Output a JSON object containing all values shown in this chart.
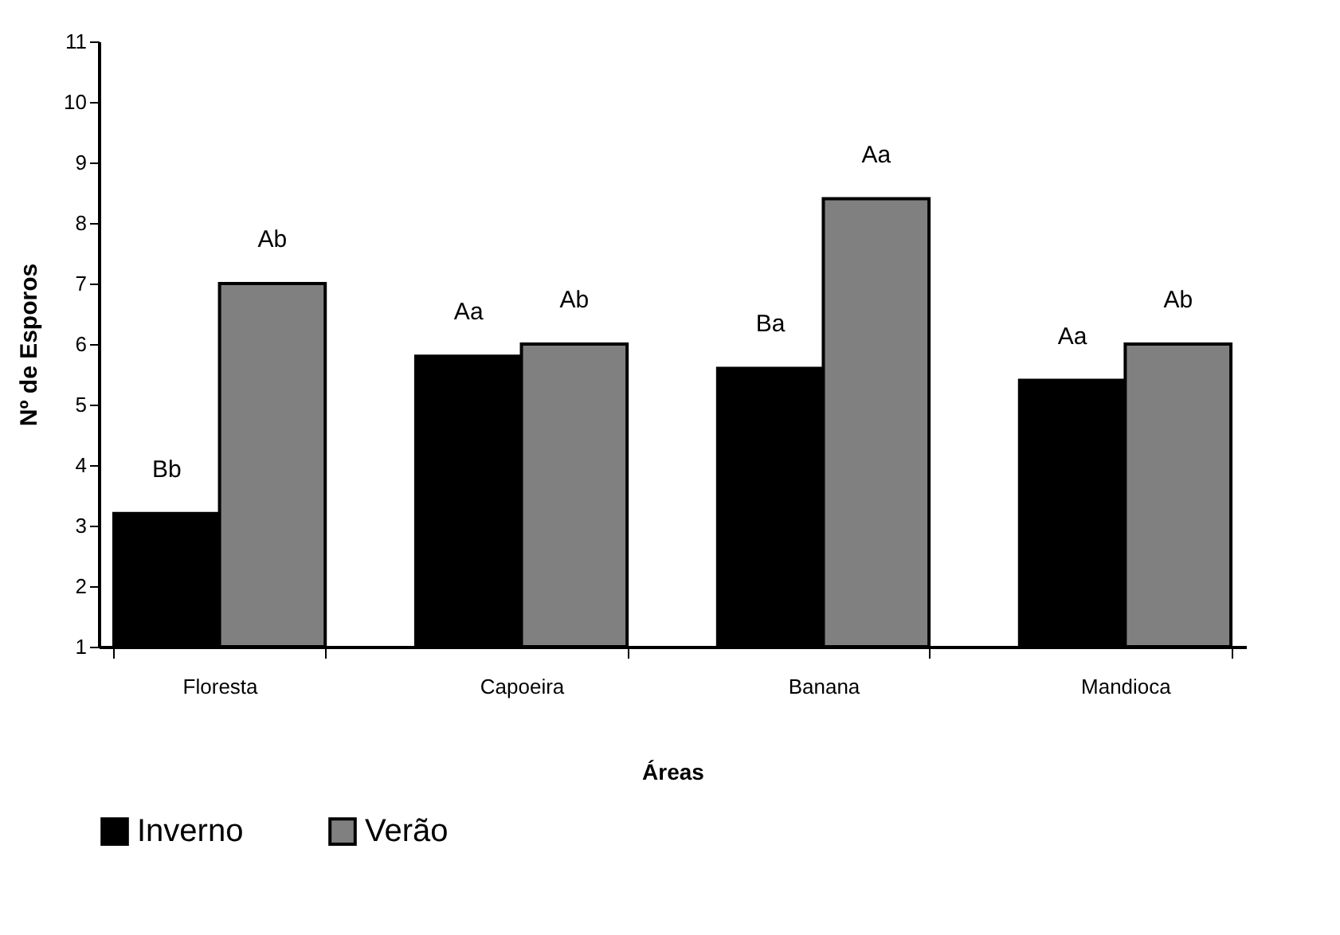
{
  "chart_data": {
    "type": "bar",
    "xlabel": "Áreas",
    "ylabel": "Nº de Esporos",
    "categories": [
      "Floresta",
      "Capoeira",
      "Banana",
      "Mandioca"
    ],
    "series": [
      {
        "name": "Inverno",
        "color": "#000000",
        "values": [
          3.2,
          5.8,
          5.6,
          5.4
        ],
        "value_labels": [
          "Bb",
          "Aa",
          "Ba",
          "Aa"
        ]
      },
      {
        "name": "Verão",
        "color": "#808080",
        "values": [
          7.0,
          6.0,
          8.4,
          6.0
        ],
        "value_labels": [
          "Ab",
          "Ab",
          "Aa",
          "Ab"
        ]
      }
    ],
    "ylim": [
      1,
      11
    ],
    "yticks": [
      1,
      2,
      3,
      4,
      5,
      6,
      7,
      8,
      9,
      10,
      11
    ],
    "grid": false,
    "legend": "bottom"
  }
}
